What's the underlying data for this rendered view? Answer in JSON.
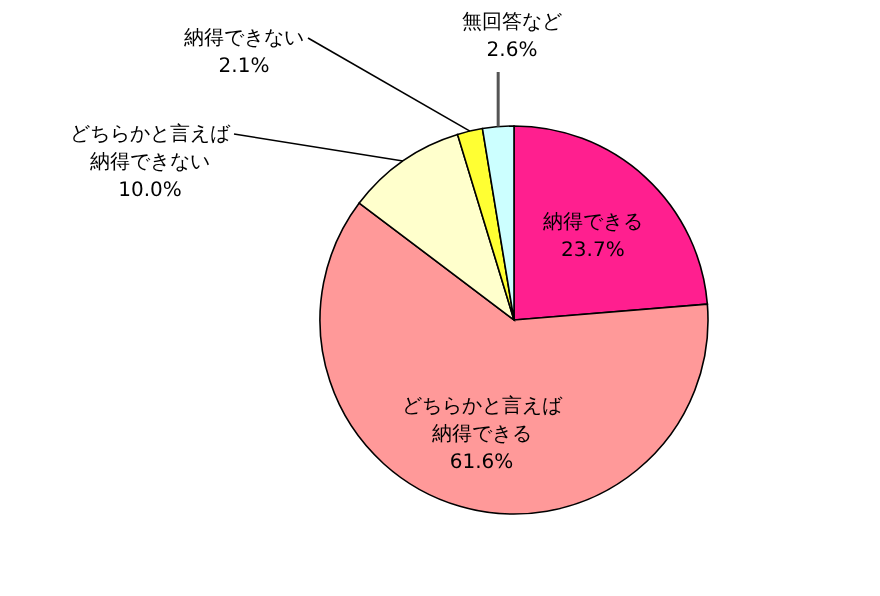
{
  "chart_data": {
    "type": "pie",
    "categories": [
      "納得できる",
      "どちらかと言えば納得できる",
      "どちらかと言えば納得できない",
      "納得できない",
      "無回答など"
    ],
    "values": [
      23.7,
      61.6,
      10.0,
      2.1,
      2.6
    ],
    "colors": [
      "#ff1f8f",
      "#ff9999",
      "#ffffcc",
      "#ffff33",
      "#ccffff"
    ],
    "value_labels": [
      "23.7%",
      "61.6%",
      "10.0%",
      "2.1%",
      "2.6%"
    ]
  }
}
